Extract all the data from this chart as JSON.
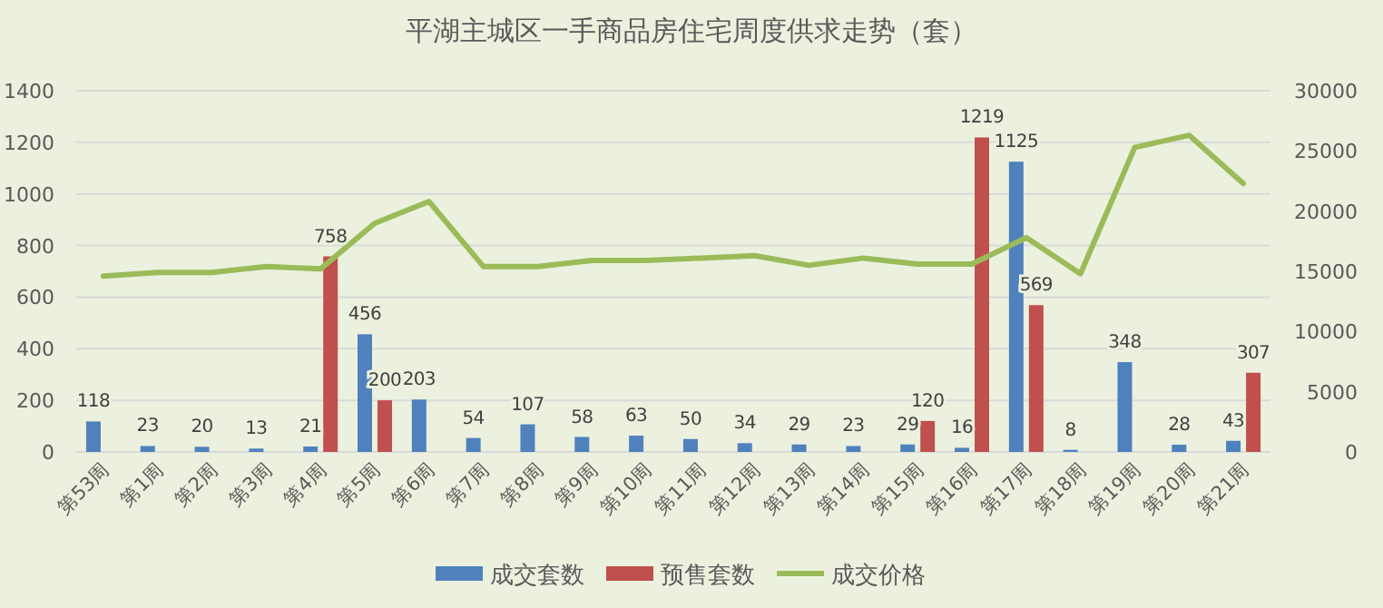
{
  "chart_data": {
    "type": "bar",
    "title": "平湖主城区一手商品房住宅周度供求走势（套）",
    "categories": [
      "第53周",
      "第1周",
      "第2周",
      "第3周",
      "第4周",
      "第5周",
      "第6周",
      "第7周",
      "第8周",
      "第9周",
      "第10周",
      "第11周",
      "第12周",
      "第13周",
      "第14周",
      "第15周",
      "第16周",
      "第17周",
      "第18周",
      "第19周",
      "第20周",
      "第21周"
    ],
    "series": [
      {
        "name": "成交套数",
        "color": "#4f81bd",
        "values": [
          118,
          23,
          20,
          13,
          21,
          456,
          203,
          54,
          107,
          58,
          63,
          50,
          34,
          29,
          23,
          29,
          16,
          1125,
          8,
          348,
          28,
          43
        ],
        "value_labels": [
          "118",
          "23",
          "20",
          "13",
          "21",
          "456",
          "203",
          "54",
          "107",
          "58",
          "63",
          "50",
          "34",
          "29",
          "23",
          "29",
          "16",
          "1125",
          "8",
          "348",
          "28",
          "43"
        ]
      },
      {
        "name": "预售套数",
        "color": "#c0504d",
        "values": [
          null,
          null,
          null,
          null,
          758,
          200,
          null,
          null,
          null,
          null,
          null,
          null,
          null,
          null,
          null,
          120,
          1219,
          569,
          null,
          null,
          null,
          307
        ],
        "value_labels": [
          null,
          null,
          null,
          null,
          "758",
          "200",
          null,
          null,
          null,
          null,
          null,
          null,
          null,
          null,
          null,
          "120",
          "1219",
          "569",
          null,
          null,
          null,
          "307"
        ]
      },
      {
        "name": "成交价格",
        "type": "line",
        "axis": "y2",
        "color": "#9bbb59",
        "values": [
          14600,
          14900,
          14900,
          15400,
          15200,
          19000,
          20800,
          15400,
          15400,
          15900,
          15900,
          16100,
          16300,
          15500,
          16100,
          15600,
          15600,
          17800,
          14800,
          25300,
          26300,
          22300
        ]
      }
    ],
    "ylim": [
      0,
      1400
    ],
    "yticks": [
      0,
      200,
      400,
      600,
      800,
      1000,
      1200,
      1400
    ],
    "y2lim": [
      0,
      30000
    ],
    "y2ticks": [
      0,
      5000,
      10000,
      15000,
      20000,
      25000,
      30000
    ],
    "grid": "y",
    "legend": "bottom"
  }
}
